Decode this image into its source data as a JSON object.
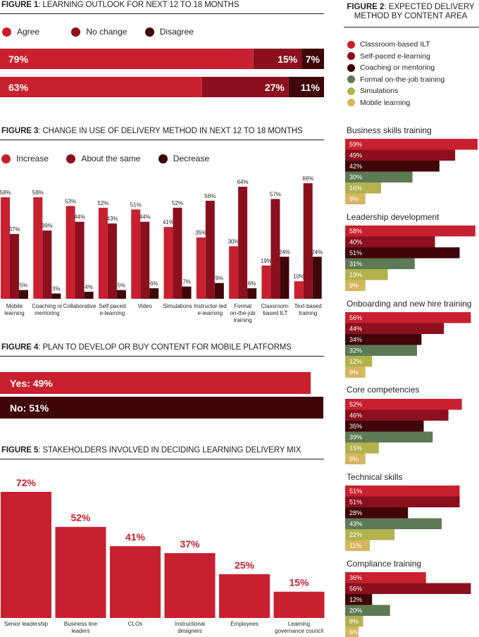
{
  "colors": {
    "agree": "#c8202f",
    "no_change": "#8c0f1e",
    "disagree": "#3f0508",
    "classroom": "#c8202f",
    "self_paced": "#8c0f1e",
    "coaching": "#3f0508",
    "formal_ojt": "#5e7a55",
    "simulations": "#b3b24d",
    "mobile": "#d6b65f"
  },
  "figure1": {
    "label": "FIGURE 1",
    "title": ": LEARNING OUTLOOK FOR NEXT 12 TO 18 MONTHS",
    "legend": [
      "Agree",
      "No change",
      "Disagree"
    ],
    "chart_data": {
      "type": "bar",
      "orientation": "horizontal-stacked-100",
      "series": [
        {
          "name": "Agree",
          "values": [
            79,
            63
          ]
        },
        {
          "name": "No change",
          "values": [
            15,
            27
          ]
        },
        {
          "name": "Disagree",
          "values": [
            7,
            11
          ]
        }
      ],
      "labels": [
        [
          "79%",
          "15%",
          "7%"
        ],
        [
          "63%",
          "27%",
          "11%"
        ]
      ]
    }
  },
  "figure2": {
    "label": "FIGURE 2",
    "title_rest": ": EXPECTED DELIVERY",
    "title_line2": "METHOD BY CONTENT AREA",
    "legend": [
      "Classroom-based ILT",
      "Self-paced e-learning",
      "Coaching or mentoring",
      "Formal on-the-job training",
      "Simulations",
      "Mobile learning"
    ],
    "chart_data": {
      "type": "bar",
      "orientation": "horizontal",
      "categories": [
        "Business skills training",
        "Leadership development",
        "Onboarding and new hire training",
        "Core competencies",
        "Technical skills",
        "Compliance training"
      ],
      "series": [
        {
          "name": "Classroom-based ILT",
          "values": [
            59,
            58,
            56,
            52,
            51,
            36
          ]
        },
        {
          "name": "Self-paced e-learning",
          "values": [
            49,
            40,
            44,
            46,
            51,
            56
          ]
        },
        {
          "name": "Coaching or mentoring",
          "values": [
            42,
            51,
            34,
            35,
            28,
            12
          ]
        },
        {
          "name": "Formal on-the-job training",
          "values": [
            30,
            31,
            32,
            39,
            43,
            20
          ]
        },
        {
          "name": "Simulations",
          "values": [
            16,
            19,
            12,
            15,
            22,
            8
          ]
        },
        {
          "name": "Mobile learning",
          "values": [
            9,
            9,
            9,
            9,
            11,
            6
          ]
        }
      ]
    }
  },
  "figure3": {
    "label": "FIGURE 3",
    "title": ": CHANGE IN USE OF DELIVERY METHOD IN NEXT 12 TO 18 MONTHS",
    "legend": [
      "Increase",
      "About the same",
      "Decrease"
    ],
    "chart_data": {
      "type": "bar",
      "orientation": "vertical-grouped",
      "categories": [
        [
          "Mobile",
          "learning"
        ],
        [
          "Coaching or",
          "mentoring"
        ],
        [
          "Collaborative"
        ],
        [
          "Self-paced",
          "e-learning"
        ],
        [
          "Video"
        ],
        [
          "Simulations"
        ],
        [
          "Instructor-led",
          "e-learning"
        ],
        [
          "Formal",
          "on-the-job",
          "training"
        ],
        [
          "Classroom-",
          "based ILT"
        ],
        [
          "Text-based",
          "training"
        ]
      ],
      "series": [
        {
          "name": "Increase",
          "values": [
            58,
            58,
            53,
            52,
            51,
            41,
            35,
            30,
            19,
            10
          ]
        },
        {
          "name": "About the same",
          "values": [
            37,
            39,
            44,
            43,
            44,
            52,
            56,
            64,
            57,
            66
          ]
        },
        {
          "name": "Decrease",
          "values": [
            5,
            3,
            4,
            5,
            6,
            7,
            9,
            6,
            24,
            24
          ]
        }
      ]
    }
  },
  "figure4": {
    "label": "FIGURE 4",
    "title": ": PLAN TO DEVELOP OR BUY CONTENT FOR MOBILE PLATFORMS",
    "chart_data": {
      "type": "bar",
      "orientation": "horizontal",
      "categories": [
        "Yes",
        "No"
      ],
      "values": [
        49,
        51
      ],
      "labels": [
        "Yes: 49%",
        "No: 51%"
      ]
    }
  },
  "figure5": {
    "label": "FIGURE 5",
    "title": ":  STAKEHOLDERS INVOLVED IN DECIDING LEARNING DELIVERY MIX",
    "chart_data": {
      "type": "bar",
      "orientation": "vertical",
      "categories": [
        [
          "Senior leadership"
        ],
        [
          "Business line",
          "leaders"
        ],
        [
          "CLOs"
        ],
        [
          "Instructional",
          "designers"
        ],
        [
          "Employees"
        ],
        [
          "Learning",
          "governance council"
        ]
      ],
      "values": [
        72,
        52,
        41,
        37,
        25,
        15
      ]
    }
  }
}
